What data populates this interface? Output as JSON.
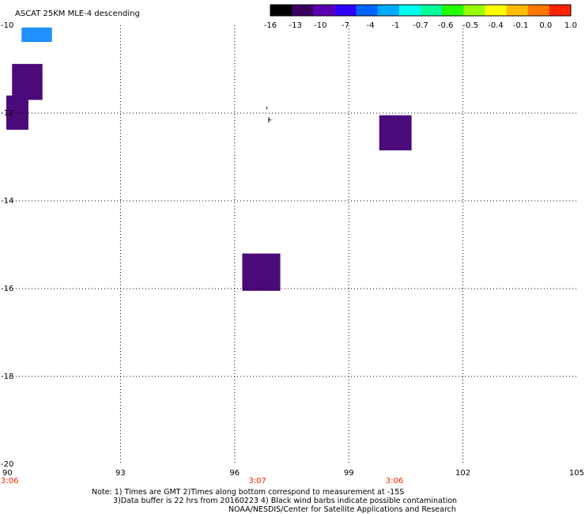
{
  "title": "ASCAT 25KM MLE-4 descending",
  "colorbar": {
    "labels": [
      "-16",
      "-13",
      "-10",
      "-7",
      "-4",
      "-1",
      "-0.7",
      "-0.6",
      "-0.5",
      "-0.4",
      "-0.1",
      "0.0",
      "1.0"
    ],
    "colors": [
      "#000000",
      "#3a0060",
      "#5a00b0",
      "#3000ff",
      "#0066ff",
      "#00aaff",
      "#00ffee",
      "#00ff99",
      "#22ff00",
      "#99ff00",
      "#ffff00",
      "#ffbb00",
      "#ff7700",
      "#ff2200"
    ]
  },
  "map": {
    "lon_range": [
      90,
      105
    ],
    "lat_range": [
      -20,
      -10
    ],
    "x_ticks": [
      "90",
      "93",
      "96",
      "99",
      "102",
      "105"
    ],
    "x_tick_values": [
      90,
      93,
      96,
      99,
      102,
      105
    ],
    "y_ticks": [
      "-10",
      "-12",
      "-14",
      "-16",
      "-18",
      "-20"
    ],
    "y_tick_values": [
      -10,
      -12,
      -14,
      -16,
      -18,
      -20
    ],
    "time_labels": [
      {
        "lon": 90,
        "text": "3:06"
      },
      {
        "lon": 96.6,
        "text": "3:07"
      },
      {
        "lon": 100.2,
        "text": "3:06"
      }
    ],
    "patches": [
      {
        "lon0": 90.4,
        "lon1": 91.2,
        "lat0": -10.05,
        "lat1": -10.38,
        "color": "#1e90ff"
      },
      {
        "lon0": 90.15,
        "lon1": 90.95,
        "lat0": -10.88,
        "lat1": -11.7,
        "color": "#4b0a7a"
      },
      {
        "lon0": 89.9,
        "lon1": 90.58,
        "lat0": -11.6,
        "lat1": -12.38,
        "color": "#4b0a7a"
      },
      {
        "lon0": 99.8,
        "lon1": 100.65,
        "lat0": -12.05,
        "lat1": -12.85,
        "color": "#4b0a7a"
      },
      {
        "lon0": 96.2,
        "lon1": 97.2,
        "lat0": -15.2,
        "lat1": -16.05,
        "color": "#4b0a7a"
      }
    ]
  },
  "notes": {
    "line1": "Note: 1) Times are GMT 2)Times along bottom correspond to measurement at -15S",
    "line2": "3)Data buffer is 22 hrs from 20160223 4) Black wind barbs indicate possible contamination",
    "line3": "NOAA/NESDIS/Center for Satellite Applications and Research"
  }
}
